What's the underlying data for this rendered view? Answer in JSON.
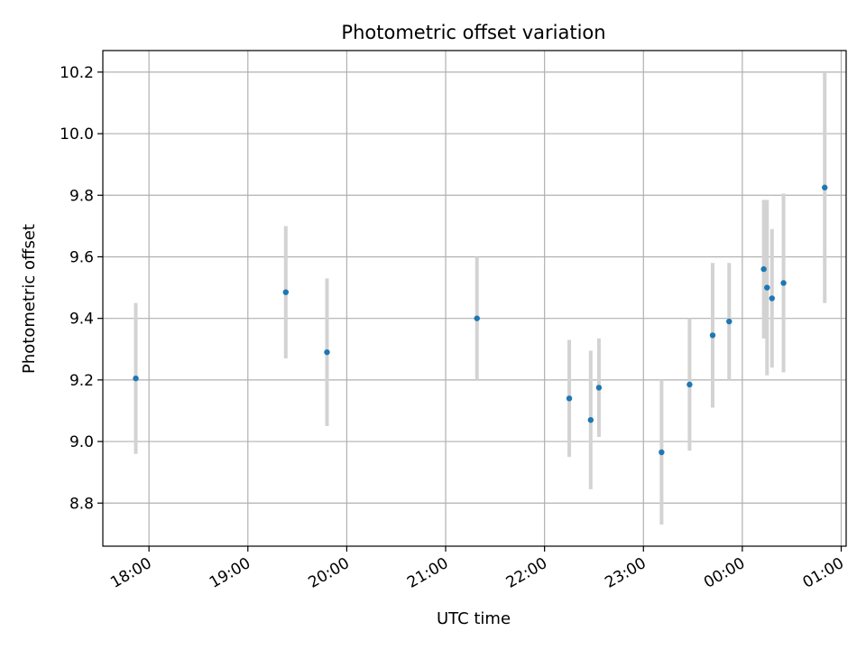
{
  "chart_data": {
    "type": "scatter",
    "title": "Photometric offset variation",
    "xlabel": "UTC time",
    "ylabel": "Photometric offset",
    "grid": true,
    "xlim": [
      "17:32",
      "01:03"
    ],
    "ylim": [
      8.66,
      10.27
    ],
    "x_ticks": [
      "18:00",
      "19:00",
      "20:00",
      "21:00",
      "22:00",
      "23:00",
      "00:00",
      "01:00"
    ],
    "y_ticks": [
      8.8,
      9.0,
      9.2,
      9.4,
      9.6,
      9.8,
      10.0,
      10.2
    ],
    "colors": {
      "point": "#1f77b4",
      "errorbar": "#d3d3d3",
      "grid": "#b0b0b0"
    },
    "points": [
      {
        "time": "17:52",
        "y": 9.205,
        "err": 0.245
      },
      {
        "time": "19:23",
        "y": 9.485,
        "err": 0.215
      },
      {
        "time": "19:48",
        "y": 9.29,
        "err": 0.24
      },
      {
        "time": "21:19",
        "y": 9.4,
        "err": 0.2
      },
      {
        "time": "22:15",
        "y": 9.14,
        "err": 0.19
      },
      {
        "time": "22:28",
        "y": 9.07,
        "err": 0.225
      },
      {
        "time": "22:33",
        "y": 9.175,
        "err": 0.16
      },
      {
        "time": "23:11",
        "y": 8.965,
        "err": 0.235
      },
      {
        "time": "23:28",
        "y": 9.185,
        "err": 0.215
      },
      {
        "time": "23:42",
        "y": 9.345,
        "err": 0.235
      },
      {
        "time": "23:52",
        "y": 9.39,
        "err": 0.19
      },
      {
        "time": "00:13",
        "y": 9.56,
        "err": 0.225
      },
      {
        "time": "00:15",
        "y": 9.5,
        "err": 0.285
      },
      {
        "time": "00:18",
        "y": 9.465,
        "err": 0.225
      },
      {
        "time": "00:25",
        "y": 9.515,
        "err": 0.29
      },
      {
        "time": "00:50",
        "y": 9.825,
        "err": 0.375
      }
    ]
  }
}
